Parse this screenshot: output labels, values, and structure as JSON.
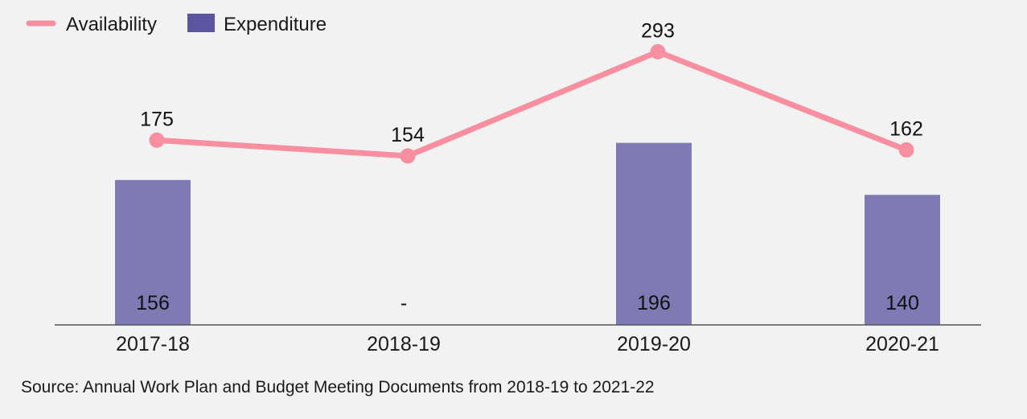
{
  "chart_data": {
    "type": "bar",
    "categories": [
      "2017-18",
      "2018-19",
      "2019-20",
      "2020-21"
    ],
    "series": [
      {
        "name": "Expenditure",
        "kind": "bar",
        "values": [
          156,
          null,
          196,
          140
        ],
        "labels": [
          "156",
          "-",
          "196",
          "140"
        ],
        "color": "#7f7ab3"
      },
      {
        "name": "Availability",
        "kind": "line",
        "values": [
          175,
          154,
          293,
          162
        ],
        "labels": [
          "175",
          "154",
          "293",
          "162"
        ],
        "color": "#f78fa0"
      }
    ],
    "legend": {
      "position": "top-left"
    },
    "grid": false,
    "source": "Source: Annual Work Plan and Budget Meeting Documents from 2018-19 to 2021-22"
  }
}
